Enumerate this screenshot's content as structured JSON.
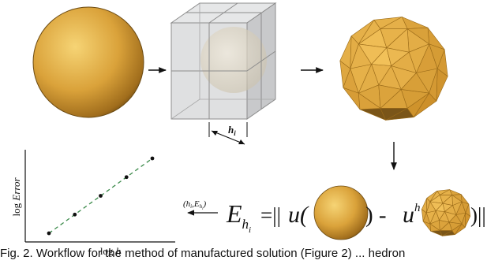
{
  "diagram": {
    "stages": [
      {
        "name": "sphere"
      },
      {
        "name": "mesh-cube",
        "label_base": "h",
        "label_sub": "i"
      },
      {
        "name": "polyhedron"
      }
    ],
    "error_formula": {
      "lhs_base": "E",
      "lhs_sub_base": "h",
      "lhs_sub_sub": "i",
      "equals_norm": "=||",
      "u": "u(",
      "close_minus": ") - ",
      "uh": "u",
      "uh_sup": "h",
      "open": "(",
      "close_norm": ")||"
    },
    "pair_label": {
      "open": "(",
      "h": "h",
      "i": "i",
      "comma": ",",
      "E": "E",
      "sub_h": "h",
      "sub_i": "i",
      "close": ")"
    },
    "plot": {
      "ylabel_prefix": "log ",
      "ylabel_var": "Error",
      "xlabel_prefix": "log ",
      "xlabel_var": "h"
    },
    "caption": "Fig. 2.  Workflow for the method of manufactured solution (Figure 2) ... hedron"
  },
  "chart_data": {
    "type": "scatter",
    "title": "",
    "xlabel": "log h",
    "ylabel": "log Error",
    "x": [
      1,
      2,
      3,
      4,
      5
    ],
    "y": [
      1,
      2,
      3,
      4,
      5
    ],
    "trendline": "dashed-green",
    "grid": false
  },
  "colors": {
    "sphere_light": "#f4cf6a",
    "sphere_mid": "#d49a30",
    "sphere_dark": "#7a5514",
    "facet_light": "#f6c65e",
    "facet_dark": "#c88a24",
    "trend": "#3b8a4a",
    "cube_face": "#d9dadc",
    "cube_edge": "#8c8c8c"
  }
}
